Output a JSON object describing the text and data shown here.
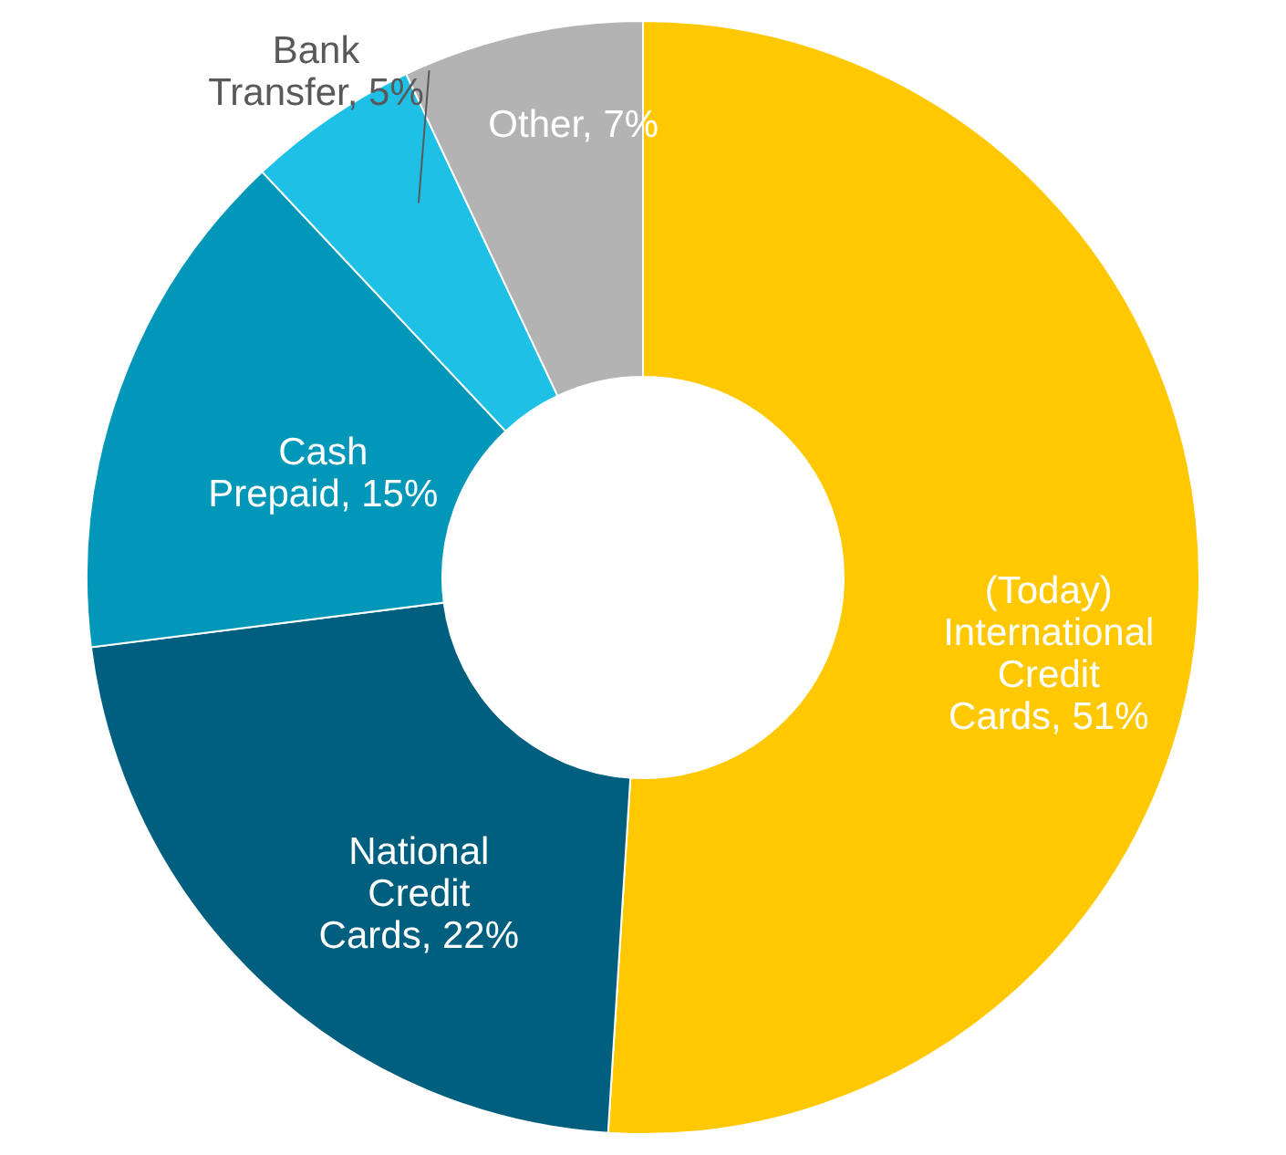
{
  "chart_data": {
    "type": "donut",
    "categories": [
      "(Today) International Credit Cards",
      "National Credit Cards",
      "Cash Prepaid",
      "Bank Transfer",
      "Other"
    ],
    "values": [
      51,
      22,
      15,
      5,
      7
    ],
    "value_labels": [
      "51%",
      "22%",
      "15%",
      "5%",
      "7%"
    ],
    "colors": [
      "#ffc800",
      "#005f7f",
      "#0097b9",
      "#1ec0e6",
      "#b3b3b3"
    ],
    "legend": false
  }
}
